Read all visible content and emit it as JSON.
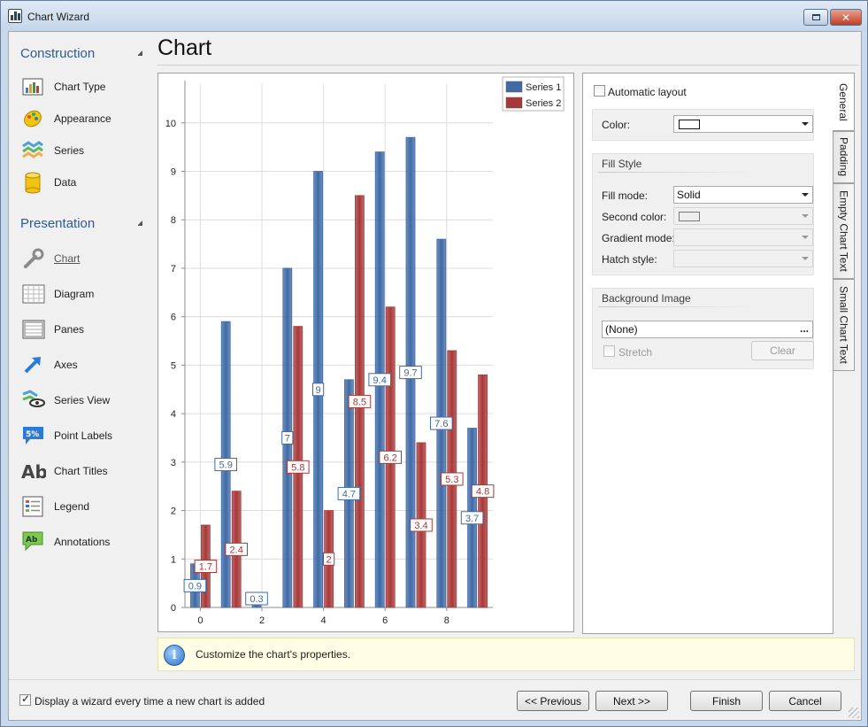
{
  "window": {
    "title": "Chart Wizard"
  },
  "nav": {
    "groups": [
      {
        "title": "Construction",
        "items": [
          {
            "label": "Chart Type",
            "icon": "chart-type-icon"
          },
          {
            "label": "Appearance",
            "icon": "appearance-icon"
          },
          {
            "label": "Series",
            "icon": "series-icon"
          },
          {
            "label": "Data",
            "icon": "data-icon"
          }
        ]
      },
      {
        "title": "Presentation",
        "items": [
          {
            "label": "Chart",
            "icon": "chart-wrench-icon"
          },
          {
            "label": "Diagram",
            "icon": "diagram-icon"
          },
          {
            "label": "Panes",
            "icon": "panes-icon"
          },
          {
            "label": "Axes",
            "icon": "axes-icon"
          },
          {
            "label": "Series View",
            "icon": "series-view-icon"
          },
          {
            "label": "Point Labels",
            "icon": "point-labels-icon"
          },
          {
            "label": "Chart Titles",
            "icon": "chart-titles-icon"
          },
          {
            "label": "Legend",
            "icon": "legend-icon"
          },
          {
            "label": "Annotations",
            "icon": "annotations-icon"
          }
        ]
      }
    ]
  },
  "page": {
    "title": "Chart"
  },
  "chart_data": {
    "type": "bar",
    "x": [
      0,
      1,
      2,
      3,
      4,
      5,
      6,
      7,
      8,
      9
    ],
    "series": [
      {
        "name": "Series 1",
        "values": [
          0.9,
          5.9,
          0.3,
          7,
          9,
          4.7,
          9.4,
          9.7,
          7.6,
          3.7
        ],
        "color": "#3f6aa6"
      },
      {
        "name": "Series 2",
        "values": [
          1.7,
          2.4,
          0,
          5.8,
          2,
          8.5,
          6.2,
          3.4,
          5.3,
          4.8
        ],
        "color": "#a83838"
      }
    ],
    "point_labels": [
      [
        "0.9",
        "5.9",
        "0.3",
        "7",
        "9",
        "4.7",
        "9.4",
        "9.7",
        "7.6",
        "3.7"
      ],
      [
        "1.7",
        "2.4",
        "",
        "5.8",
        "2",
        "8.5",
        "6.2",
        "3.4",
        "5.3",
        "4.8"
      ]
    ],
    "x_ticks": [
      "0",
      "2",
      "4",
      "6",
      "8"
    ],
    "x_tick_values": [
      0,
      2,
      4,
      6,
      8
    ],
    "y_ticks": [
      "0",
      "1",
      "2",
      "3",
      "4",
      "5",
      "6",
      "7",
      "8",
      "9",
      "10"
    ],
    "ylim": [
      0,
      10.8
    ],
    "xlim": [
      -0.5,
      9.5
    ],
    "grid": true,
    "legend": "top-right",
    "title": "",
    "xlabel": "",
    "ylabel": ""
  },
  "properties": {
    "automatic_layout": {
      "label": "Automatic layout",
      "checked": false
    },
    "color": {
      "label": "Color:"
    },
    "fill_style": {
      "title": "Fill Style",
      "fill_mode": {
        "label": "Fill mode:",
        "value": "Solid"
      },
      "second_color": {
        "label": "Second color:"
      },
      "gradient_mode": {
        "label": "Gradient mode:"
      },
      "hatch_style": {
        "label": "Hatch style:"
      }
    },
    "background_image": {
      "title": "Background Image",
      "value": "(None)",
      "browse": "...",
      "stretch": {
        "label": "Stretch",
        "checked": false
      },
      "clear": "Clear"
    }
  },
  "tabs": [
    "General",
    "Padding",
    "Empty Chart Text",
    "Small Chart Text"
  ],
  "info": {
    "text": "Customize the chart's properties."
  },
  "footer": {
    "show_wizard": {
      "label": "Display a wizard every time a new chart is added",
      "checked": true
    },
    "previous": "<< Previous",
    "next": "Next >>",
    "finish": "Finish",
    "cancel": "Cancel"
  }
}
